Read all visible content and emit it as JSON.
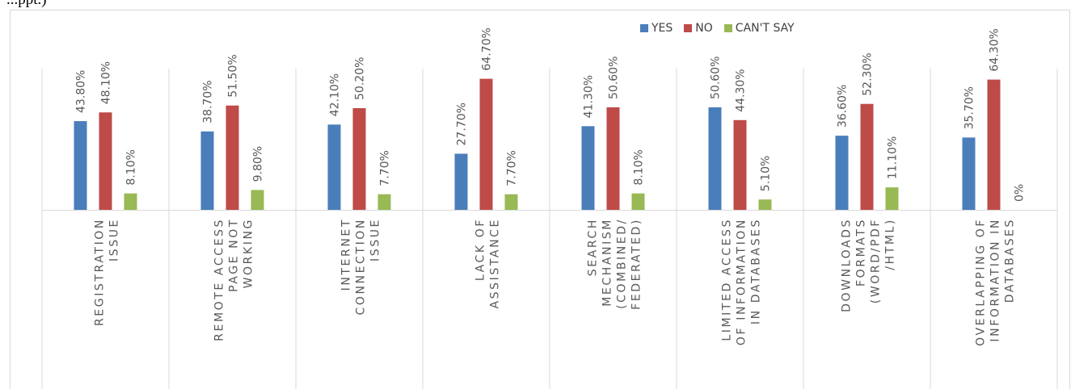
{
  "caption": "...ppt.)",
  "colors": {
    "yes": "#4a7ebb",
    "no": "#be4b48",
    "cant_say": "#98b954"
  },
  "chart_data": {
    "type": "bar",
    "title": "",
    "xlabel": "",
    "ylabel": "",
    "ylim": [
      0,
      70
    ],
    "grid": false,
    "legend_placement": "top-right",
    "categories": [
      [
        "REGISTRATION",
        "ISSUE"
      ],
      [
        "REMOTE ACCESS",
        "PAGE NOT",
        "WORKING"
      ],
      [
        "INTERNET",
        "CONNECTION",
        "ISSUE"
      ],
      [
        "LACK OF",
        "ASSISTANCE"
      ],
      [
        "SEARCH",
        "MECHANISM",
        "(COMBINED/",
        "FEDERATED)"
      ],
      [
        "LIMITED ACCESS",
        "OF INFORMATION",
        "IN DATABASES"
      ],
      [
        "DOWNLOADS",
        "FORMATS",
        "(WORD/PDF",
        "/HTML)"
      ],
      [
        "OVERLAPPING OF",
        "INFORMATION IN",
        "DATABASES"
      ]
    ],
    "series": [
      {
        "name": "YES",
        "values": [
          43.8,
          38.7,
          42.1,
          27.7,
          41.3,
          50.6,
          36.6,
          35.7
        ],
        "labels": [
          "43.80%",
          "38.70%",
          "42.10%",
          "27.70%",
          "41.30%",
          "50.60%",
          "36.60%",
          "35.70%"
        ]
      },
      {
        "name": "NO",
        "values": [
          48.1,
          51.5,
          50.2,
          64.7,
          50.6,
          44.3,
          52.3,
          64.3
        ],
        "labels": [
          "48.10%",
          "51.50%",
          "50.20%",
          "64.70%",
          "50.60%",
          "44.30%",
          "52.30%",
          "64.30%"
        ]
      },
      {
        "name": "CAN'T SAY",
        "values": [
          8.1,
          9.8,
          7.7,
          7.7,
          8.1,
          5.1,
          11.1,
          0
        ],
        "labels": [
          "8.10%",
          "9.80%",
          "7.70%",
          "7.70%",
          "8.10%",
          "5.10%",
          "11.10%",
          "0%"
        ]
      }
    ]
  }
}
